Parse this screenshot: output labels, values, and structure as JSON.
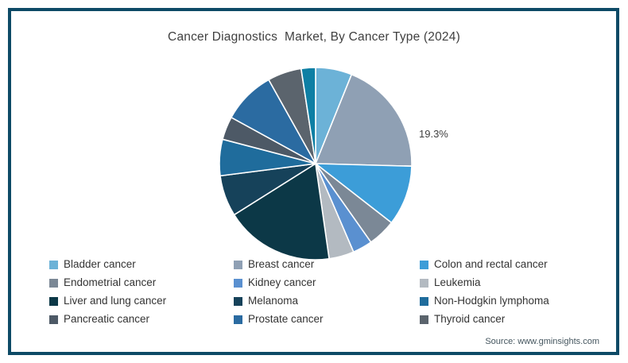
{
  "frame": {
    "border_color": "#0d4a66",
    "background": "#ffffff"
  },
  "title": "Cancer Diagnostics  Market, By Cancer Type (2024)",
  "annotation": {
    "text": "19.3%",
    "for_slice": "Breast cancer"
  },
  "source": {
    "text": "Source: www.gminsights.com"
  },
  "chart_data": {
    "type": "pie",
    "title": "Cancer Diagnostics  Market, By Cancer Type (2024)",
    "start_angle_deg_from_12_oclock": 0,
    "direction": "clockwise",
    "units": "percent share (estimated from wedge angles; only 19.3% is labeled on chart)",
    "slice_stroke_color": "#ffffff",
    "slices": [
      {
        "label": "Bladder cancer",
        "value": 6.1,
        "color": "#6cb2d7",
        "in_legend": true
      },
      {
        "label": "Breast cancer",
        "value": 19.3,
        "color": "#8fa0b4",
        "in_legend": true,
        "data_label": "19.3%"
      },
      {
        "label": "Colon and rectal cancer",
        "value": 10.1,
        "color": "#3c9dd8",
        "in_legend": true
      },
      {
        "label": "Endometrial cancer",
        "value": 4.7,
        "color": "#7b8896",
        "in_legend": true
      },
      {
        "label": "Kidney cancer",
        "value": 3.3,
        "color": "#5a90d0",
        "in_legend": true
      },
      {
        "label": "Leukemia",
        "value": 4.2,
        "color": "#b3bac1",
        "in_legend": true
      },
      {
        "label": "Liver and lung cancer",
        "value": 18.3,
        "color": "#0c3847",
        "in_legend": true
      },
      {
        "label": "Melanoma",
        "value": 6.9,
        "color": "#16425a",
        "in_legend": true
      },
      {
        "label": "Non-Hodgkin lymphoma",
        "value": 6.1,
        "color": "#1f6c9c",
        "in_legend": true
      },
      {
        "label": "Pancreatic cancer",
        "value": 3.9,
        "color": "#4d5966",
        "in_legend": true
      },
      {
        "label": "Prostate cancer",
        "value": 8.9,
        "color": "#2b6ba1",
        "in_legend": true
      },
      {
        "label": "Thyroid cancer",
        "value": 5.7,
        "color": "#5b646d",
        "in_legend": true
      },
      {
        "label": "",
        "value": 2.4,
        "color": "#0e7fa4",
        "in_legend": false
      }
    ],
    "legend_position": "bottom",
    "legend_columns": 3
  }
}
